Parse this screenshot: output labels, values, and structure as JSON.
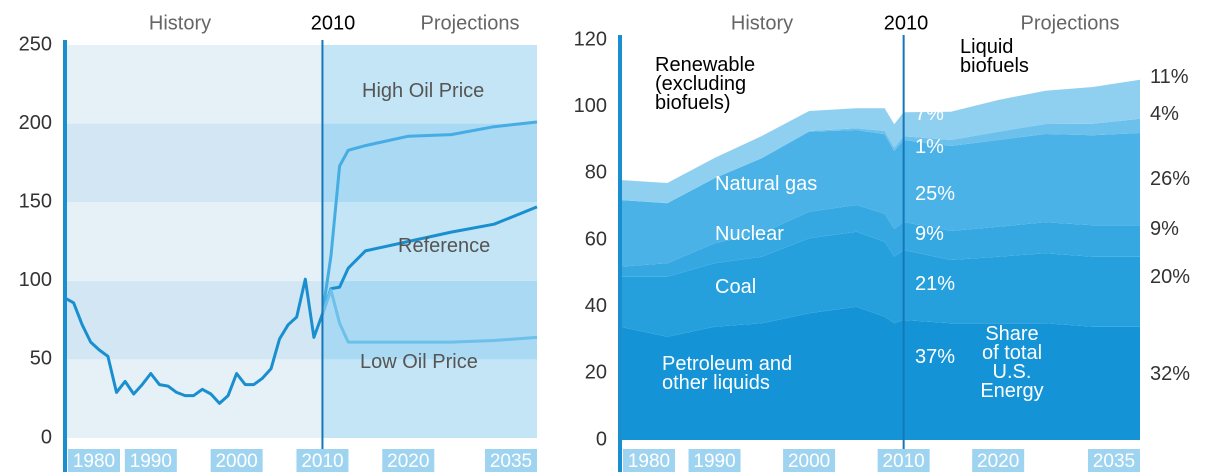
{
  "chart_data": [
    {
      "type": "line",
      "headers": {
        "history": "History",
        "projections": "Projections"
      },
      "divider": 2010,
      "x": [
        1980,
        1981,
        1982,
        1983,
        1984,
        1985,
        1986,
        1987,
        1988,
        1989,
        1990,
        1991,
        1992,
        1993,
        1994,
        1995,
        1996,
        1997,
        1998,
        1999,
        2000,
        2001,
        2002,
        2003,
        2004,
        2005,
        2006,
        2007,
        2008,
        2009,
        2010,
        2011,
        2012,
        2013,
        2015,
        2020,
        2025,
        2030,
        2035
      ],
      "xlim": [
        1980,
        2035
      ],
      "xticks": [
        1980,
        1990,
        2000,
        2010,
        2020,
        2035
      ],
      "ylim": [
        0,
        250
      ],
      "yticks": [
        0,
        50,
        100,
        150,
        200,
        250
      ],
      "series": [
        {
          "name": "Reference",
          "color": "#1a8fd0",
          "values": [
            89,
            86,
            72,
            61,
            56,
            52,
            29,
            36,
            28,
            34,
            41,
            34,
            33,
            29,
            27,
            27,
            31,
            28,
            22,
            27,
            41,
            34,
            34,
            38,
            44,
            63,
            72,
            77,
            101,
            64,
            79,
            95,
            96,
            108,
            119,
            125,
            131,
            136,
            147
          ]
        },
        {
          "name": "High Oil Price",
          "color": "#45ade3",
          "values": [
            null,
            null,
            null,
            null,
            null,
            null,
            null,
            null,
            null,
            null,
            null,
            null,
            null,
            null,
            null,
            null,
            null,
            null,
            null,
            null,
            null,
            null,
            null,
            null,
            null,
            null,
            null,
            null,
            null,
            null,
            79,
            116,
            173,
            183,
            186,
            192,
            193,
            198,
            201
          ]
        },
        {
          "name": "Low Oil Price",
          "color": "#6cc0ea",
          "values": [
            null,
            null,
            null,
            null,
            null,
            null,
            null,
            null,
            null,
            null,
            null,
            null,
            null,
            null,
            null,
            null,
            null,
            null,
            null,
            null,
            null,
            null,
            null,
            null,
            null,
            null,
            null,
            null,
            null,
            null,
            79,
            94,
            73,
            61,
            61,
            61,
            61,
            62,
            64
          ]
        }
      ]
    },
    {
      "type": "stacked_area",
      "headers": {
        "history": "History",
        "projections": "Projections"
      },
      "divider": 2010,
      "x": [
        1980,
        1985,
        1990,
        1995,
        2000,
        2005,
        2008,
        2009,
        2010,
        2015,
        2020,
        2025,
        2030,
        2035
      ],
      "xlim": [
        1980,
        2035
      ],
      "xticks": [
        1980,
        1990,
        2000,
        2010,
        2020,
        2035
      ],
      "ylim": [
        0,
        120
      ],
      "yticks": [
        0,
        20,
        40,
        60,
        80,
        100,
        120
      ],
      "note": "Share\nof total\nU.S.\nEnergy",
      "series": [
        {
          "name": "Petroleum and\nother liquids",
          "color": "#1494d6",
          "share_labels": [
            "37%",
            "32%"
          ],
          "values": [
            34,
            31,
            34,
            35,
            38,
            40,
            37,
            35,
            36,
            35,
            35,
            35,
            34,
            34
          ]
        },
        {
          "name": "Coal",
          "color": "#26a0dd",
          "share_labels": [
            "21%",
            "20%"
          ],
          "values": [
            15,
            18,
            19,
            20,
            22.5,
            22.5,
            22.5,
            20,
            21,
            19,
            20,
            21,
            21,
            21
          ]
        },
        {
          "name": "Nuclear",
          "color": "#36a8e1",
          "share_labels": [
            "9%",
            "9%"
          ],
          "values": [
            3,
            4,
            6,
            7,
            8,
            8,
            8.4,
            8.3,
            8.4,
            8.7,
            9,
            9.3,
            9.4,
            9.4
          ]
        },
        {
          "name": "Natural gas",
          "color": "#4ab2e6",
          "share_labels": [
            "25%",
            "26%"
          ],
          "values": [
            20,
            18,
            19.5,
            22.5,
            24,
            22.5,
            23.8,
            23.4,
            24.6,
            25.5,
            26,
            26.5,
            27,
            27.7
          ]
        },
        {
          "name": "Liquid\nbiofuels",
          "color": "#6cc1ec",
          "share_labels": [
            "1%",
            "4%"
          ],
          "values": [
            0,
            0.1,
            0.1,
            0.2,
            0.2,
            0.5,
            1,
            1,
            1.1,
            1.8,
            2.5,
            3,
            3.5,
            4.3
          ]
        },
        {
          "name": "Renewable\n(excluding\nbiofuels)",
          "color": "#8fcff0",
          "share_labels": [
            "7%",
            "11%"
          ],
          "values": [
            6,
            6,
            6,
            6.5,
            6,
            6,
            6.8,
            7,
            7.2,
            8.5,
            9.5,
            10,
            11,
            11.7
          ]
        }
      ]
    }
  ]
}
